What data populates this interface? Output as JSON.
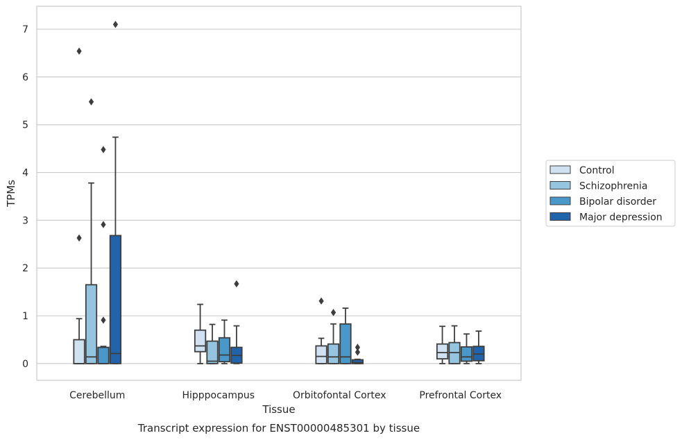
{
  "chart_data": {
    "type": "box",
    "xlabel": "Tissue",
    "ylabel": "TPMs",
    "caption": "Transcript expression for ENST00000485301 by tissue",
    "ylim": [
      -0.35,
      7.48
    ],
    "yticks": [
      0,
      1,
      2,
      3,
      4,
      5,
      6,
      7
    ],
    "grid": true,
    "legend_position": "right",
    "categories": [
      "Cerebellum",
      "Hipppocampus",
      "Orbitofontal Cortex",
      "Prefrontal Cortex"
    ],
    "series": [
      {
        "name": "Control",
        "color": "#d0e1f2",
        "boxes": [
          {
            "whisker_low": 0,
            "q1": 0,
            "median": 0,
            "q3": 0.5,
            "whisker_high": 0.94,
            "outliers": [
              2.63,
              6.54
            ]
          },
          {
            "whisker_low": 0,
            "q1": 0.25,
            "median": 0.37,
            "q3": 0.7,
            "whisker_high": 1.24,
            "outliers": []
          },
          {
            "whisker_low": 0,
            "q1": 0,
            "median": 0.15,
            "q3": 0.37,
            "whisker_high": 0.53,
            "outliers": [
              1.31
            ]
          },
          {
            "whisker_low": 0,
            "q1": 0.1,
            "median": 0.23,
            "q3": 0.41,
            "whisker_high": 0.78,
            "outliers": []
          }
        ]
      },
      {
        "name": "Schizophrenia",
        "color": "#94c4df",
        "boxes": [
          {
            "whisker_low": 0,
            "q1": 0,
            "median": 0.14,
            "q3": 1.65,
            "whisker_high": 3.78,
            "outliers": [
              5.48
            ]
          },
          {
            "whisker_low": 0,
            "q1": 0,
            "median": 0.05,
            "q3": 0.47,
            "whisker_high": 0.82,
            "outliers": []
          },
          {
            "whisker_low": 0,
            "q1": 0,
            "median": 0.14,
            "q3": 0.41,
            "whisker_high": 0.83,
            "outliers": [
              1.07
            ]
          },
          {
            "whisker_low": 0,
            "q1": 0,
            "median": 0.23,
            "q3": 0.44,
            "whisker_high": 0.79,
            "outliers": []
          }
        ]
      },
      {
        "name": "Bipolar disorder",
        "color": "#4a98c9",
        "boxes": [
          {
            "whisker_low": 0,
            "q1": 0,
            "median": 0,
            "q3": 0.34,
            "whisker_high": 0.36,
            "outliers": [
              0.91,
              2.91,
              4.48
            ]
          },
          {
            "whisker_low": 0,
            "q1": 0.04,
            "median": 0.18,
            "q3": 0.54,
            "whisker_high": 0.91,
            "outliers": []
          },
          {
            "whisker_low": 0,
            "q1": 0,
            "median": 0.14,
            "q3": 0.83,
            "whisker_high": 1.16,
            "outliers": []
          },
          {
            "whisker_low": 0,
            "q1": 0.05,
            "median": 0.14,
            "q3": 0.35,
            "whisker_high": 0.62,
            "outliers": []
          }
        ]
      },
      {
        "name": "Major depression",
        "color": "#2164ab",
        "boxes": [
          {
            "whisker_low": 0,
            "q1": 0,
            "median": 0.21,
            "q3": 2.68,
            "whisker_high": 4.74,
            "outliers": [
              7.1
            ]
          },
          {
            "whisker_low": 0,
            "q1": 0.01,
            "median": 0.17,
            "q3": 0.34,
            "whisker_high": 0.79,
            "outliers": [
              1.67
            ]
          },
          {
            "whisker_low": 0,
            "q1": 0,
            "median": 0.02,
            "q3": 0.08,
            "whisker_high": 0.09,
            "outliers": [
              0.24,
              0.34
            ]
          },
          {
            "whisker_low": 0,
            "q1": 0.06,
            "median": 0.2,
            "q3": 0.36,
            "whisker_high": 0.68,
            "outliers": []
          }
        ]
      }
    ]
  }
}
